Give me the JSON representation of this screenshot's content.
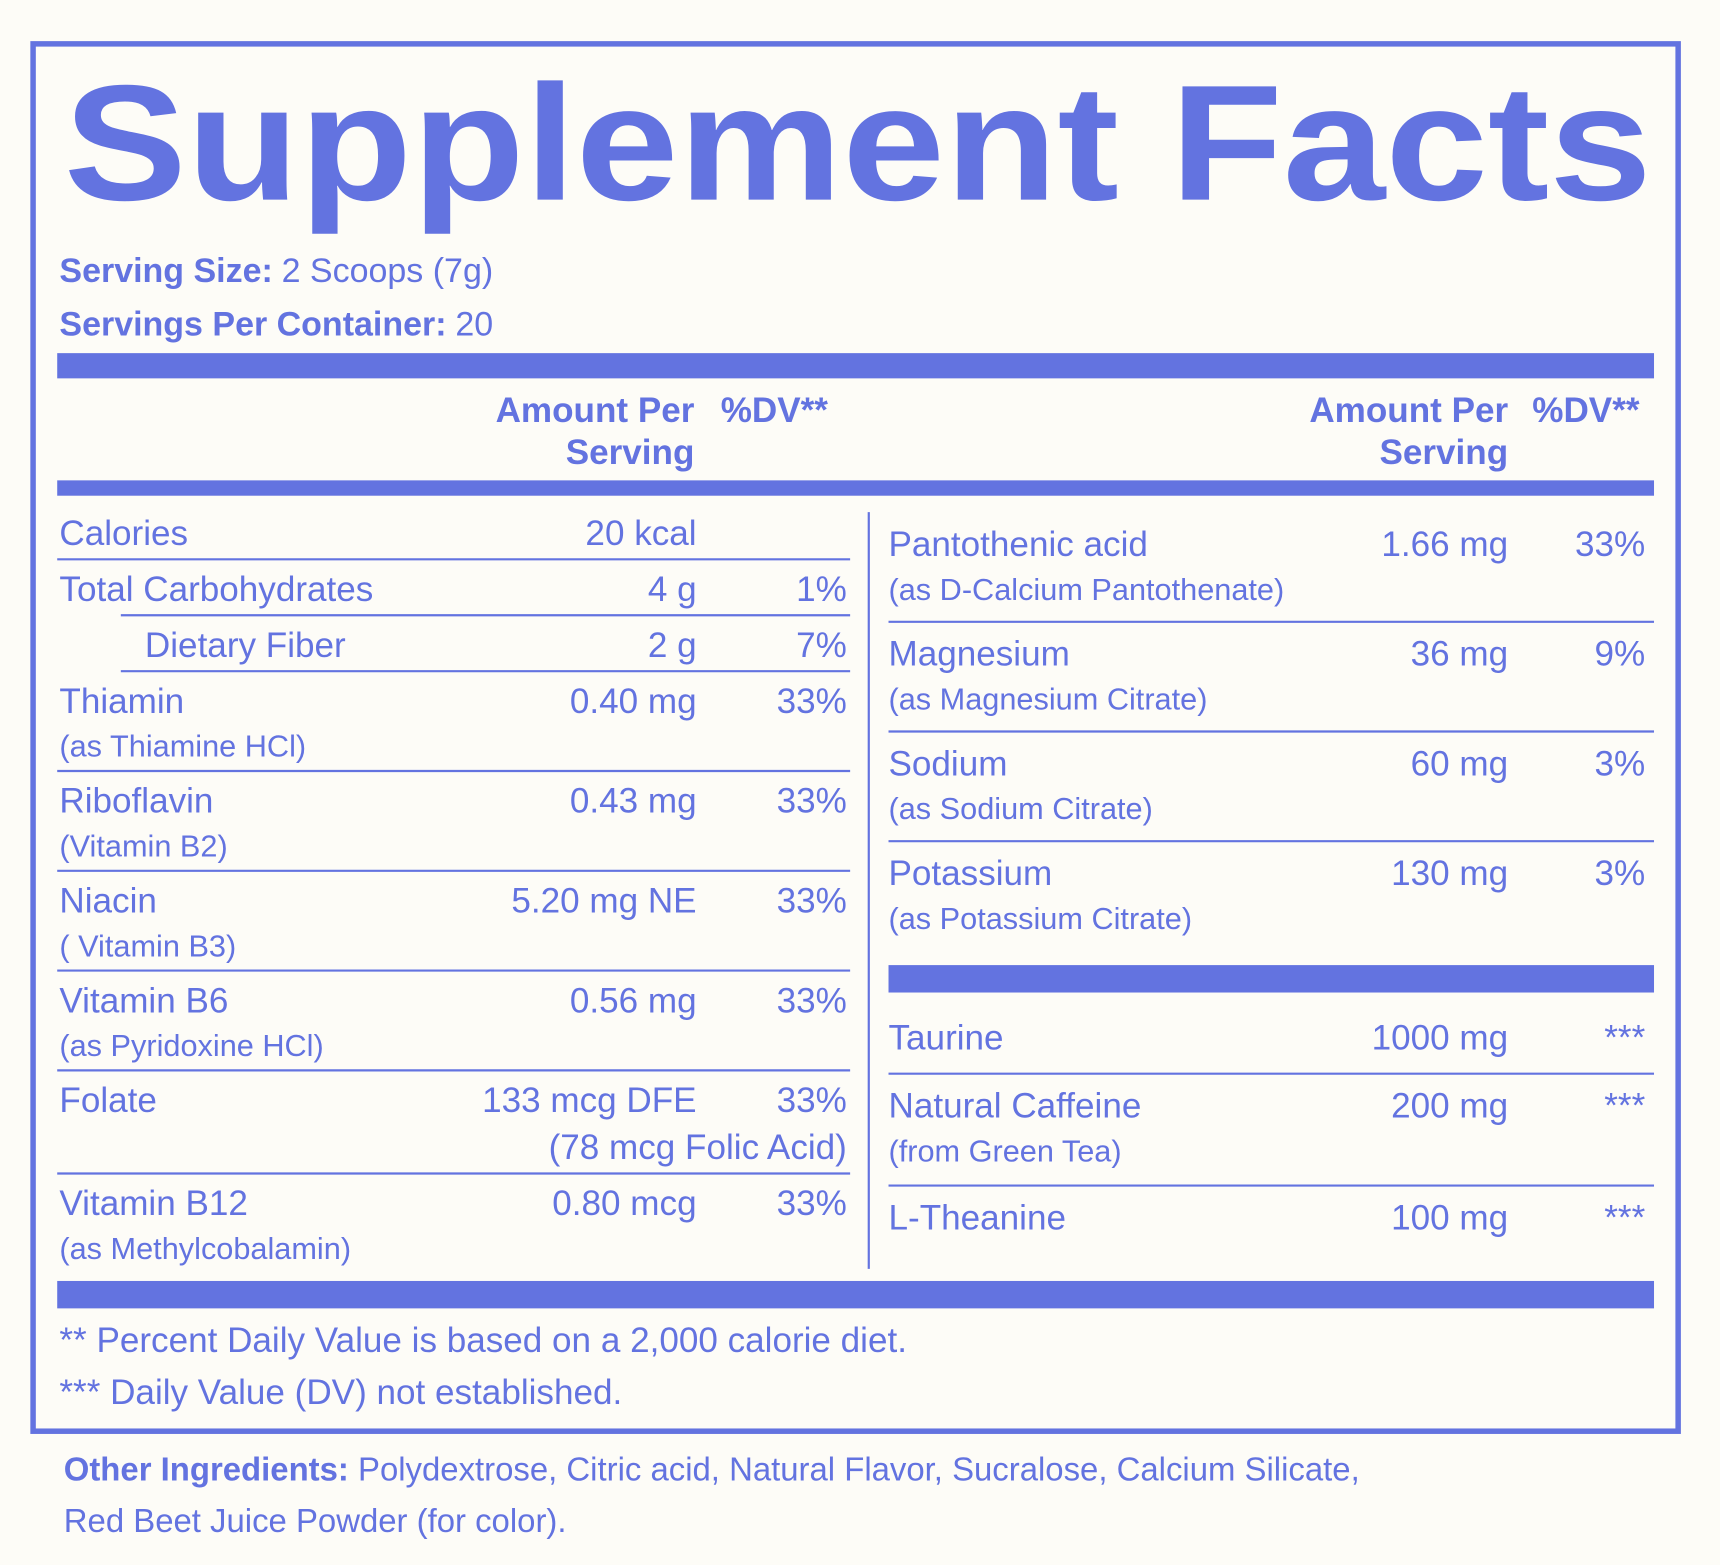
{
  "title": "Supplement Facts",
  "serving_size": {
    "label": "Serving Size:",
    "value": "2 Scoops (7g)"
  },
  "servings_per_container": {
    "label": "Servings Per Container:",
    "value": "20"
  },
  "left_header": {
    "amount": [
      "Amount Per",
      "Serving"
    ],
    "dv": "%DV**"
  },
  "right_header": {
    "amount": [
      "Amount Per",
      "Serving"
    ],
    "dv": "%DV**"
  },
  "left_rows": [
    {
      "name": "Calories",
      "amount": "20 kcal"
    },
    {
      "name": "Total Carbohydrates",
      "amount": "4 g",
      "dv": "1%"
    },
    {
      "name": "Dietary Fiber",
      "amount": "2 g",
      "dv": "7%",
      "indent": true
    },
    {
      "name": "Thiamin",
      "sub": "(as Thiamine HCl)",
      "amount": "0.40 mg",
      "dv": "33%"
    },
    {
      "name": "Riboflavin",
      "sub": "(Vitamin B2)",
      "amount": "0.43 mg",
      "dv": "33%"
    },
    {
      "name": "Niacin",
      "sub": "( Vitamin B3)",
      "amount": "5.20 mg NE",
      "dv": "33%"
    },
    {
      "name": "Vitamin B6",
      "sub": "(as Pyridoxine HCl)",
      "amount": "0.56 mg",
      "dv": "33%"
    },
    {
      "name": "Folate",
      "amount": "133 mcg DFE",
      "amount_note": "(78 mcg Folic Acid)",
      "dv": "33%"
    },
    {
      "name": "Vitamin B12",
      "sub": "(as Methylcobalamin)",
      "amount": "0.80 mcg",
      "dv": "33%"
    }
  ],
  "right_groups": [
    [
      {
        "name": "Pantothenic acid",
        "sub": "(as D-Calcium Pantothenate)",
        "amount": "1.66 mg",
        "dv": "33%"
      },
      {
        "name": "Magnesium",
        "sub": "(as Magnesium Citrate)",
        "amount": "36 mg",
        "dv": "9%"
      },
      {
        "name": "Sodium",
        "sub": "(as Sodium Citrate)",
        "amount": "60 mg",
        "dv": "3%"
      },
      {
        "name": "Potassium",
        "sub": "(as Potassium Citrate)",
        "amount": "130 mg",
        "dv": "3%"
      }
    ],
    [
      {
        "name": "Taurine",
        "amount": "1000 mg",
        "dv": "***"
      },
      {
        "name": "Natural Caffeine",
        "sub": "(from Green Tea)",
        "amount": "200 mg",
        "dv": "***"
      },
      {
        "name": "L-Theanine",
        "amount": "100 mg",
        "dv": "***"
      }
    ]
  ],
  "footnotes": [
    "** Percent Daily Value is based on a 2,000 calorie diet.",
    "*** Daily Value (DV) not established."
  ],
  "other_ingredients": {
    "label": "Other Ingredients:",
    "text": " Polydextrose, Citric acid, Natural Flavor, Sucralose, Calcium Silicate,",
    "text_2": "Red Beet Juice Powder (for color)."
  }
}
